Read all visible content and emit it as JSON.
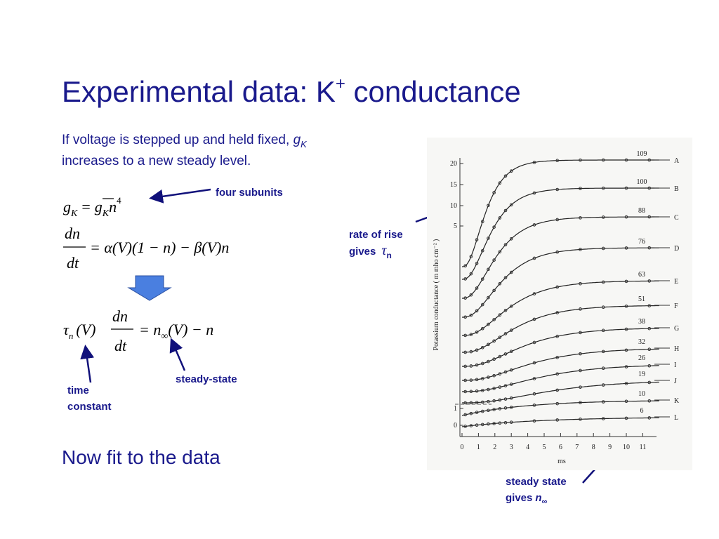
{
  "title": {
    "main": "Experimental data: K",
    "sup": "+",
    "rest": " conductance"
  },
  "intro": {
    "line1": "If voltage is stepped up and held fixed, ",
    "g": "g",
    "g_sub": "K",
    "line2": "increases to a new steady level."
  },
  "equations": {
    "eq1": {
      "lhs": "g",
      "lhs_sub": "K",
      "equals": "=",
      "rhs": "g",
      "rhs_sub": "K",
      "n": "n",
      "exp": "4"
    },
    "eq2": {
      "num": "dn",
      "den": "dt",
      "rhs": "= α(V)(1 − n) − β(V)n"
    },
    "eq3": {
      "tau": "τ",
      "tau_sub": "n",
      "arg": "(V)",
      "num": "dn",
      "den": "dt",
      "rhs": "= n",
      "inf": "∞",
      "rest": "(V) − n"
    }
  },
  "annotations": {
    "four_subunits": "four subunits",
    "rate_line1": "rate of rise",
    "rate_gives": "gives",
    "rate_tau": "τ",
    "rate_sub": "n",
    "steady_state": "steady-state",
    "time_line1": "time",
    "time_line2": "constant",
    "fit": "Now fit to the data",
    "ss_line1": "steady state",
    "ss_gives": "gives",
    "ss_n": "n",
    "ss_inf": "∞"
  },
  "figure": {
    "y_label": "Potassium conductance ( m mho cm⁻² )",
    "y_ticks": [
      "20",
      "15",
      "10",
      "5",
      "1",
      "0"
    ],
    "x_ticks": [
      "0",
      "1",
      "2",
      "3",
      "4",
      "5",
      "6",
      "7",
      "8",
      "9",
      "10",
      "11"
    ],
    "x_label": "ms",
    "curve_values": [
      "109",
      "100",
      "88",
      "76",
      "63",
      "51",
      "38",
      "32",
      "26",
      "19",
      "10",
      "6"
    ],
    "curve_letters": [
      "A",
      "B",
      "C",
      "D",
      "E",
      "F",
      "G",
      "H",
      "I",
      "J",
      "K",
      "L"
    ]
  }
}
